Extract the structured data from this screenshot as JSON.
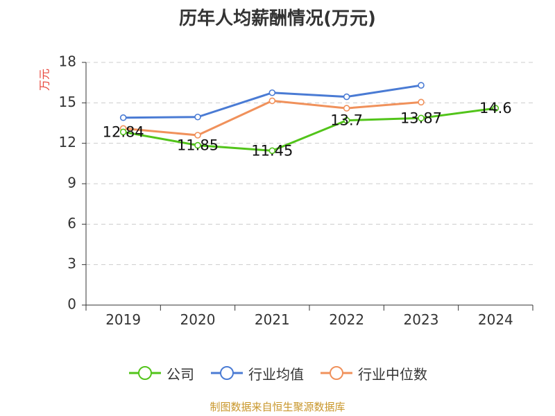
{
  "title": "历年人均薪酬情况(万元)",
  "chart_data": {
    "type": "line",
    "title": "历年人均薪酬情况(万元)",
    "ylabel": "万元",
    "xlabel": "",
    "categories": [
      "2019",
      "2020",
      "2021",
      "2022",
      "2023",
      "2024"
    ],
    "ylim": [
      0,
      18
    ],
    "yticks": [
      0,
      3,
      6,
      9,
      12,
      15,
      18
    ],
    "grid": true,
    "legend": "bottom",
    "series": [
      {
        "name": "公司",
        "color": "#52c41a",
        "values": [
          12.84,
          11.85,
          11.45,
          13.7,
          13.87,
          14.6
        ],
        "labels": [
          "12.84",
          "11.85",
          "11.45",
          "13.7",
          "13.87",
          "14.6"
        ]
      },
      {
        "name": "行业均值",
        "color": "#4a7bd4",
        "values": [
          13.9,
          13.95,
          15.75,
          15.45,
          16.3,
          null
        ]
      },
      {
        "name": "行业中位数",
        "color": "#f0915b",
        "values": [
          13.1,
          12.6,
          15.15,
          14.6,
          15.05,
          null
        ]
      }
    ]
  },
  "footer": "制图数据来自恒生聚源数据库",
  "colors": {
    "axis": "#333333",
    "grid": "#cccccc",
    "unit": "#e8443a",
    "footer": "#c8962a"
  }
}
